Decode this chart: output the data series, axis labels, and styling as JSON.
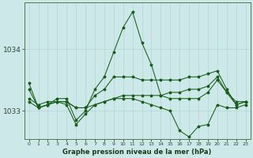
{
  "bg_color": "#cce8e8",
  "grid_color": "#b8d8d8",
  "line_color": "#1a5c1a",
  "title": "Graphe pression niveau de la mer (hPa)",
  "x_labels": [
    "0",
    "1",
    "2",
    "3",
    "4",
    "5",
    "6",
    "7",
    "8",
    "9",
    "10",
    "11",
    "12",
    "13",
    "14",
    "15",
    "16",
    "17",
    "18",
    "19",
    "20",
    "21",
    "22",
    "23"
  ],
  "ylim": [
    1032.55,
    1034.75
  ],
  "yticks": [
    1033,
    1034
  ],
  "series": [
    [
      1033.45,
      1033.05,
      1033.1,
      1033.2,
      1033.2,
      1032.85,
      1033.0,
      1033.35,
      1033.55,
      1033.95,
      1034.35,
      1034.6,
      1034.1,
      1033.75,
      1033.25,
      1033.2,
      1033.2,
      1033.2,
      1033.2,
      1033.3,
      1033.5,
      1033.3,
      1033.1,
      1033.15
    ],
    [
      1033.2,
      1033.1,
      1033.15,
      1033.15,
      1033.15,
      1033.05,
      1033.05,
      1033.1,
      1033.15,
      1033.2,
      1033.25,
      1033.25,
      1033.25,
      1033.25,
      1033.25,
      1033.3,
      1033.3,
      1033.35,
      1033.35,
      1033.4,
      1033.55,
      1033.3,
      1033.15,
      1033.15
    ],
    [
      1033.15,
      1033.05,
      1033.1,
      1033.15,
      1033.1,
      1032.78,
      1032.95,
      1033.1,
      1033.15,
      1033.2,
      1033.2,
      1033.2,
      1033.15,
      1033.1,
      1033.05,
      1033.0,
      1032.68,
      1032.58,
      1032.75,
      1032.78,
      1033.1,
      1033.05,
      1033.05,
      1033.1
    ],
    [
      1033.35,
      1033.05,
      1033.1,
      1033.15,
      1033.15,
      1033.05,
      1033.05,
      1033.25,
      1033.35,
      1033.55,
      1033.55,
      1033.55,
      1033.5,
      1033.5,
      1033.5,
      1033.5,
      1033.5,
      1033.55,
      1033.55,
      1033.6,
      1033.65,
      1033.35,
      1033.1,
      1033.15
    ]
  ]
}
